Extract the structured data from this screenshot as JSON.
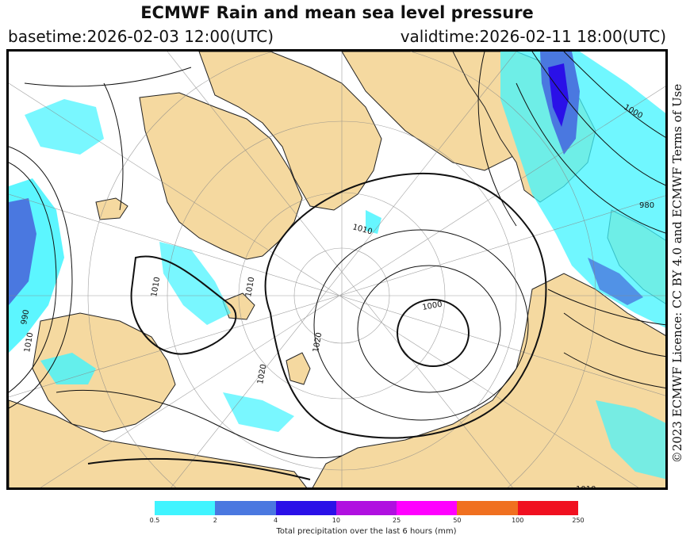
{
  "header": {
    "title": "ECMWF Rain and mean sea level pressure",
    "basetime": "basetime:2026-02-03 12:00(UTC)",
    "validtime": "validtime:2026-02-11 18:00(UTC)"
  },
  "licence": "©2023 ECMWF Licence: CC BY 4.0 and ECMWF Terms of Use",
  "legend": {
    "label": "Total precipitation over the last 6 hours (mm)",
    "ticks": [
      "0.5",
      "2",
      "4",
      "10",
      "25",
      "50",
      "100",
      "250"
    ],
    "colors": [
      "#40f4ff",
      "#4a78e0",
      "#2a10e8",
      "#b010e0",
      "#ff00ff",
      "#f07020",
      "#f01020"
    ]
  },
  "map": {
    "land_color": "#f5d9a0",
    "isobar_labels": [
      "1000",
      "1010",
      "1020",
      "1010",
      "1010",
      "990",
      "980",
      "1000",
      "1010",
      "1020",
      "1010"
    ]
  }
}
